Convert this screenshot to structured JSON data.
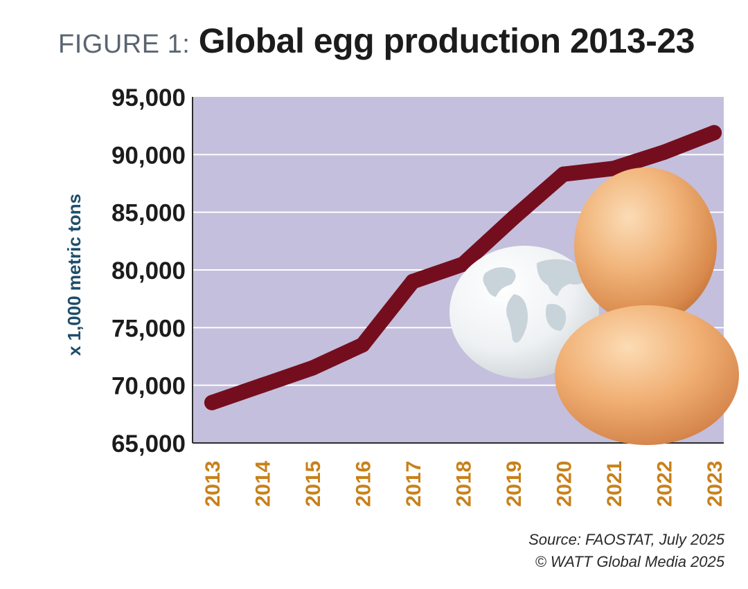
{
  "title": {
    "prefix": "FIGURE 1:",
    "main": "Global egg production 2013-23"
  },
  "source": {
    "line1": "Source: FAOSTAT, July 2025",
    "line2": "© WATT Global Media 2025"
  },
  "colors": {
    "plot_background": "#c4bfdc",
    "gridline": "#ffffff",
    "series_line": "#740e1e",
    "tick_year": "#c8811a",
    "ylabel": "#1f4d6b",
    "tick_value": "#1c1c1c"
  },
  "chart_data": {
    "type": "line",
    "title": "Global egg production 2013-23",
    "xlabel": "",
    "ylabel": "x 1,000 metric tons",
    "x": [
      "2013",
      "2014",
      "2015",
      "2016",
      "2017",
      "2018",
      "2019",
      "2020",
      "2021",
      "2022",
      "2023"
    ],
    "series": [
      {
        "values": [
          68500,
          70000,
          71500,
          73500,
          79000,
          80500,
          84500,
          88300,
          88800,
          90200,
          91900
        ]
      }
    ],
    "yticks": [
      "65,000",
      "70,000",
      "75,000",
      "80,000",
      "85,000",
      "90,000",
      "95,000"
    ],
    "ylim": [
      65000,
      95000
    ],
    "grid": true,
    "legend": "none",
    "illustration": [
      "world-globe-egg",
      "brown-egg",
      "brown-egg"
    ]
  }
}
